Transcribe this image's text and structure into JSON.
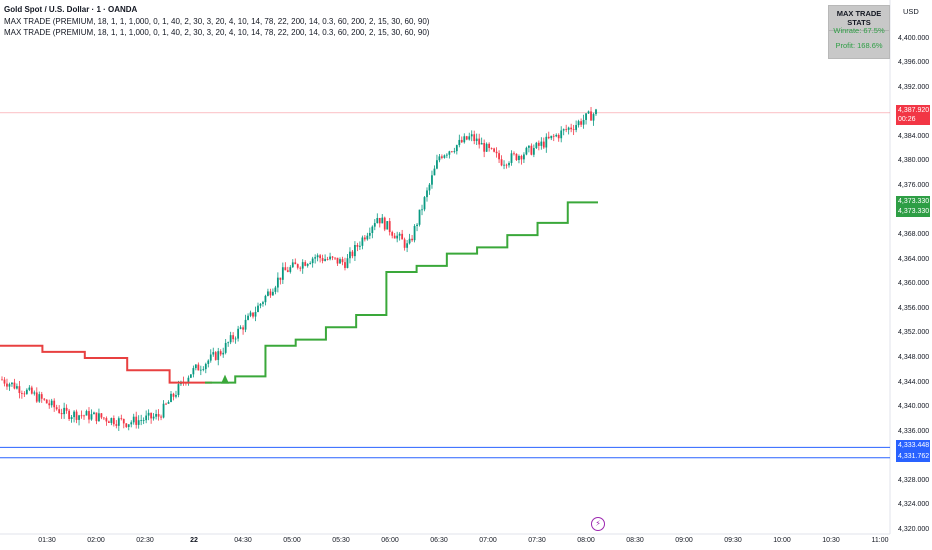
{
  "header": {
    "symbol_title": "Gold Spot / U.S. Dollar · 1 · OANDA",
    "indicator_1": "MAX TRADE (PREMIUM, 18, 1, 1, 1,000, 0, 1, 40, 2, 30, 3, 20, 4, 10, 14, 78, 22, 200, 14, 0.3, 60, 200, 2, 15, 30, 60, 90)",
    "indicator_2": "MAX TRADE (PREMIUM, 18, 1, 1, 1,000, 0, 1, 40, 2, 30, 3, 20, 4, 10, 14, 78, 22, 200, 14, 0.3, 60, 200, 2, 15, 30, 60, 90)"
  },
  "stats": {
    "title": "MAX TRADE STATS",
    "winrate": "Winrate: 67.5%",
    "profit": "Profit: 168.6%"
  },
  "price_axis": {
    "currency": "USD",
    "labels": [
      "4,400.000",
      "4,396.000",
      "4,392.000",
      "4,384.000",
      "4,380.000",
      "4,376.000",
      "4,368.000",
      "4,364.000",
      "4,360.000",
      "4,356.000",
      "4,352.000",
      "4,348.000",
      "4,344.000",
      "4,340.000",
      "4,336.000",
      "4,328.000",
      "4,324.000",
      "4,320.000"
    ]
  },
  "tags": {
    "last_price": "4,387.920",
    "countdown": "00:26",
    "green_1": "4,373.330",
    "green_2": "4,373.330",
    "blue_1": "4,333.448",
    "blue_2": "4,331.762"
  },
  "time_axis": {
    "labels": [
      "01:30",
      "02:00",
      "02:30",
      "22",
      "04:30",
      "05:00",
      "05:30",
      "06:00",
      "06:30",
      "07:00",
      "07:30",
      "08:00",
      "08:30",
      "09:00",
      "09:30",
      "10:00",
      "10:30",
      "11:00"
    ]
  },
  "colors": {
    "bull": "#089981",
    "bear": "#f23645",
    "trail_red": "#e84040",
    "trail_green": "#3aa83a",
    "blue_line": "#2962ff",
    "last_price_tag": "#f23645",
    "green_tag": "#2e9e45",
    "blue_tag": "#2962ff"
  },
  "icons": {
    "flash": "lightning-icon"
  },
  "chart_data": {
    "type": "candlestick",
    "title": "Gold Spot / U.S. Dollar · 1 · OANDA",
    "x": [
      "01:30",
      "02:00",
      "02:30",
      "04:30",
      "05:00",
      "05:30",
      "06:00",
      "06:30",
      "07:00",
      "07:30",
      "08:00"
    ],
    "close_path": [
      4344.5,
      4342,
      4339,
      4338.5,
      4337.5,
      4338.5,
      4345.5,
      4349,
      4355,
      4362,
      4364.5,
      4363.5,
      4371,
      4366,
      4381,
      4384,
      4380,
      4382,
      4385,
      4388
    ],
    "ylim": [
      4320,
      4404
    ],
    "trail_stop_red": [
      4350,
      4349,
      4348,
      4346,
      4344
    ],
    "trail_stop_green": [
      4344,
      4345,
      4350,
      4351,
      4353,
      4355,
      4362,
      4363,
      4365,
      4366,
      4368,
      4370,
      4373.33
    ],
    "horizontal_levels": [
      4333.448,
      4331.762
    ],
    "last_price": 4387.92
  }
}
